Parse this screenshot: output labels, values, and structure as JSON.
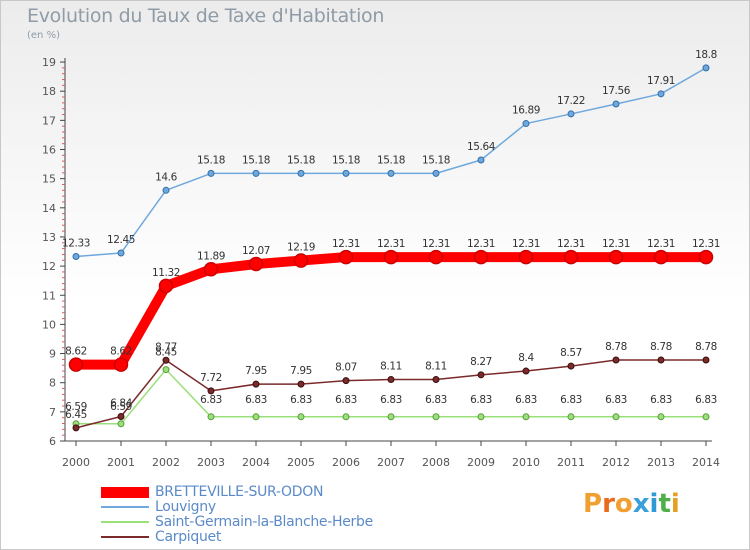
{
  "title": "Evolution du Taux de Taxe d'Habitation",
  "unit": "(en %)",
  "logo": {
    "letters": [
      "P",
      "r",
      "o",
      "x",
      "i",
      "t",
      "i"
    ],
    "colors": [
      "#f0a030",
      "#e86a1c",
      "#f0a030",
      "#3aa0d8",
      "#2f9ad6",
      "#4fb04a",
      "#e6a020"
    ]
  },
  "chart_data": {
    "type": "line",
    "x": [
      "2000",
      "2001",
      "2002",
      "2003",
      "2004",
      "2005",
      "2006",
      "2007",
      "2008",
      "2009",
      "2010",
      "2011",
      "2012",
      "2013",
      "2014"
    ],
    "yticks": [
      "6",
      "7",
      "8",
      "9",
      "10",
      "11",
      "12",
      "13",
      "14",
      "15",
      "16",
      "17",
      "18",
      "19"
    ],
    "ylim": [
      6,
      19
    ],
    "grid": false,
    "legend_position": "bottom-left",
    "series": [
      {
        "name": "BRETTEVILLE-SUR-ODON",
        "color": "#ff0000",
        "values": [
          8.62,
          8.62,
          11.32,
          11.89,
          12.07,
          12.19,
          12.31,
          12.31,
          12.31,
          12.31,
          12.31,
          12.31,
          12.31,
          12.31,
          12.31
        ],
        "labels": [
          "8.62",
          "8.62",
          "11.32",
          "11.89",
          "12.07",
          "12.19",
          "12.31",
          "12.31",
          "12.31",
          "12.31",
          "12.31",
          "12.31",
          "12.31",
          "12.31",
          "12.31"
        ]
      },
      {
        "name": "Louvigny",
        "color": "#6fa8dc",
        "values": [
          12.33,
          12.45,
          14.6,
          15.18,
          15.18,
          15.18,
          15.18,
          15.18,
          15.18,
          15.64,
          16.89,
          17.22,
          17.56,
          17.91,
          18.8
        ],
        "labels": [
          "12.33",
          "12.45",
          "14.6",
          "15.18",
          "15.18",
          "15.18",
          "15.18",
          "15.18",
          "15.18",
          "15.64",
          "16.89",
          "17.22",
          "17.56",
          "17.91",
          "18.8"
        ]
      },
      {
        "name": "Saint-Germain-la-Blanche-Herbe",
        "color": "#99e07a",
        "values": [
          6.59,
          6.59,
          8.45,
          6.83,
          6.83,
          6.83,
          6.83,
          6.83,
          6.83,
          6.83,
          6.83,
          6.83,
          6.83,
          6.83,
          6.83
        ],
        "labels": [
          "6.59",
          "6.59",
          "8.45",
          "6.83",
          "6.83",
          "6.83",
          "6.83",
          "6.83",
          "6.83",
          "6.83",
          "6.83",
          "6.83",
          "6.83",
          "6.83",
          "6.83"
        ]
      },
      {
        "name": "Carpiquet",
        "color": "#7a2a2a",
        "values": [
          6.45,
          6.84,
          8.77,
          7.72,
          7.95,
          7.95,
          8.07,
          8.11,
          8.11,
          8.27,
          8.4,
          8.57,
          8.78,
          8.78,
          8.78
        ],
        "labels": [
          "6.45",
          "6.84",
          "8.77",
          "7.72",
          "7.95",
          "7.95",
          "8.07",
          "8.11",
          "8.11",
          "8.27",
          "8.4",
          "8.57",
          "8.78",
          "8.78",
          "8.78"
        ]
      }
    ]
  }
}
